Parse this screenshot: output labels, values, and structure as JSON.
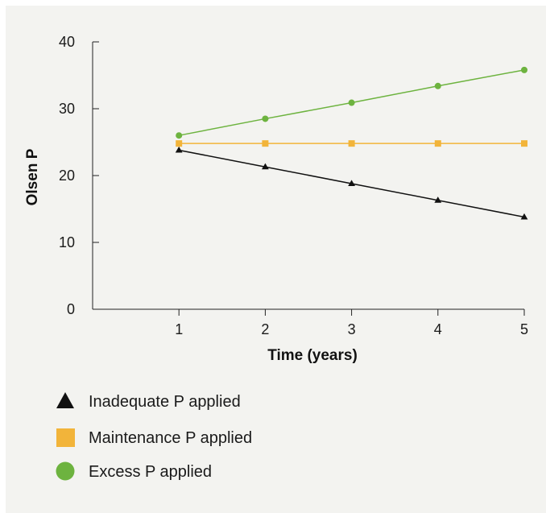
{
  "colors": {
    "background": "#f3f3f0",
    "axis": "#222222",
    "inadequate": "#111111",
    "maintenance": "#f2b43a",
    "excess": "#6db33f"
  },
  "chart_data": {
    "type": "line",
    "title": "",
    "xlabel": "Time (years)",
    "ylabel": "Olsen P",
    "x": [
      1,
      2,
      3,
      4,
      5
    ],
    "x_ticks": [
      "1",
      "2",
      "3",
      "4",
      "5"
    ],
    "y_ticks": [
      "0",
      "10",
      "20",
      "30",
      "40"
    ],
    "ylim": [
      0,
      40
    ],
    "xlim": [
      0,
      5
    ],
    "grid": false,
    "legend_position": "bottom-left",
    "series": [
      {
        "name": "Inadequate P applied",
        "marker": "triangle",
        "color": "#111111",
        "values": [
          23.8,
          21.3,
          18.8,
          16.3,
          13.8
        ]
      },
      {
        "name": "Maintenance P applied",
        "marker": "square",
        "color": "#f2b43a",
        "values": [
          24.8,
          24.8,
          24.8,
          24.8,
          24.8
        ]
      },
      {
        "name": "Excess P applied",
        "marker": "circle",
        "color": "#6db33f",
        "values": [
          26.0,
          28.5,
          30.9,
          33.4,
          35.8
        ]
      }
    ]
  }
}
